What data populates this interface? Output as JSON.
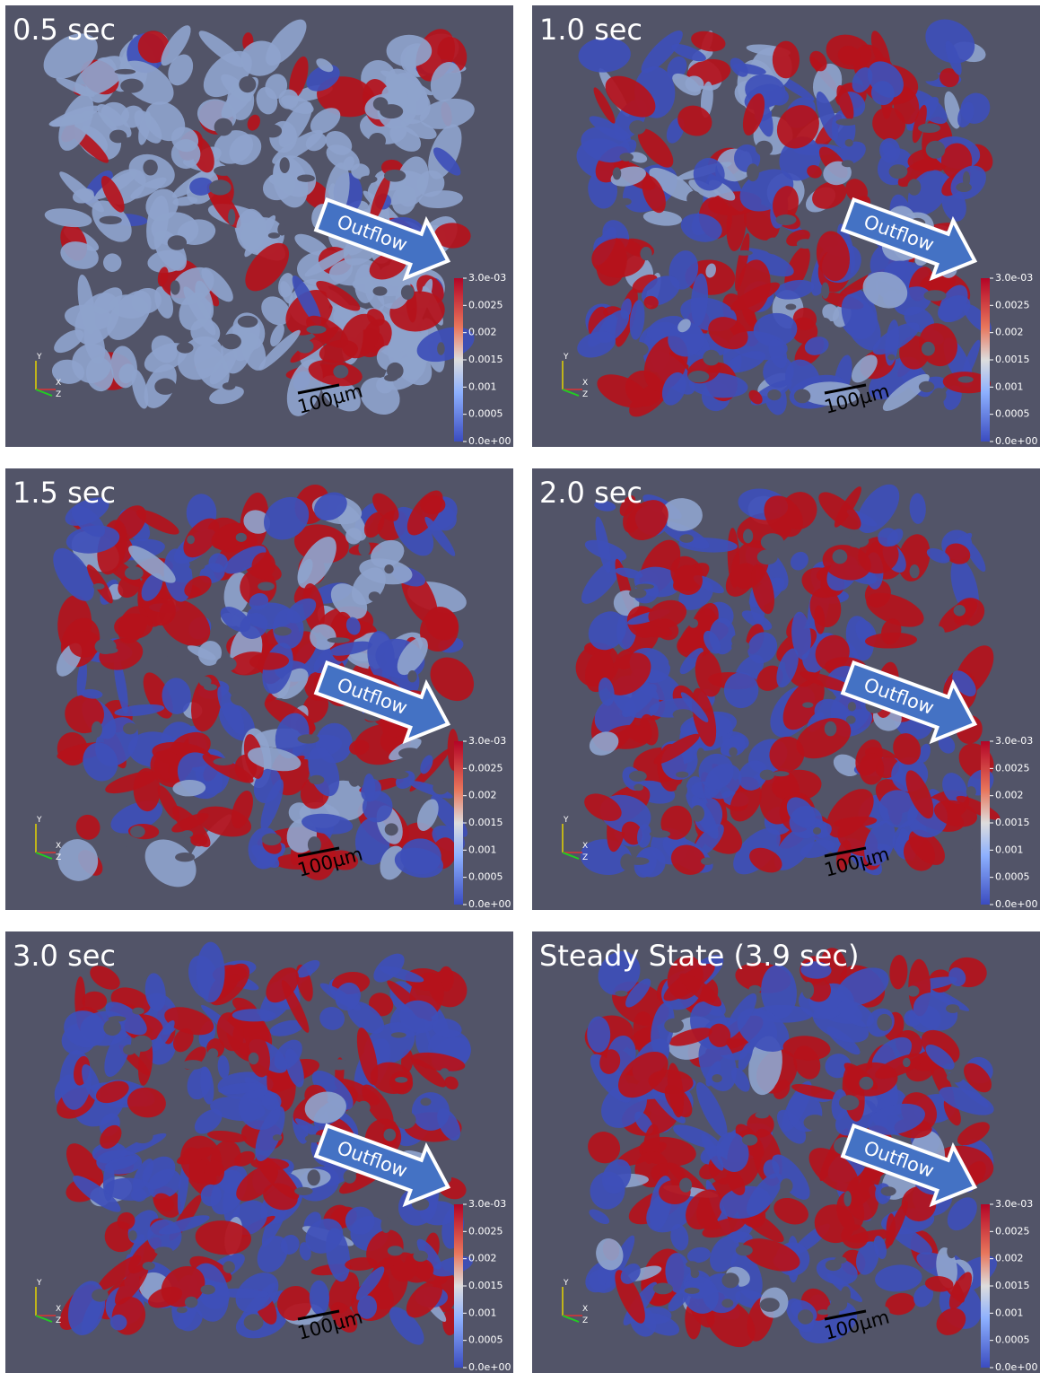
{
  "panels": [
    {
      "title": "0.5 sec"
    },
    {
      "title": "1.0 sec"
    },
    {
      "title": "1.5 sec"
    },
    {
      "title": "2.0 sec"
    },
    {
      "title": "3.0 sec"
    },
    {
      "title": "Steady State (3.9 sec)"
    }
  ],
  "outflow_label": "Outflow",
  "scale_bar_label": "100µm",
  "axis_labels": {
    "y": "Y",
    "x": "X",
    "z": "Z"
  },
  "colorbar_ticks": [
    "3.0e-03",
    "0.0025",
    "0.002",
    "0.0015",
    "0.001",
    "0.0005",
    "0.0e+00"
  ]
}
